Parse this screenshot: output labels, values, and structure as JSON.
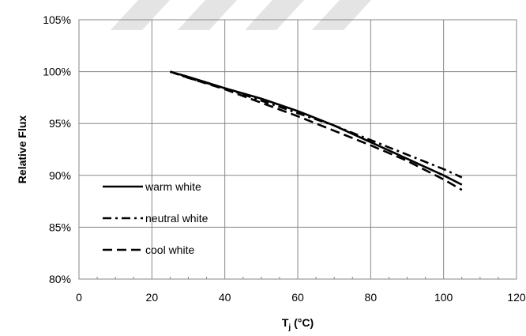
{
  "chart_data": {
    "type": "line",
    "xlabel_main": "T",
    "xlabel_sub": "j",
    "xlabel_unit": " (°C)",
    "ylabel": "Relative Flux",
    "xlim": [
      0,
      120
    ],
    "ylim": [
      80,
      105
    ],
    "x_ticks": [
      0,
      20,
      40,
      60,
      80,
      100,
      120
    ],
    "y_ticks": [
      80,
      85,
      90,
      95,
      100,
      105
    ],
    "x_tick_labels": [
      "0",
      "20",
      "40",
      "60",
      "80",
      "100",
      "120"
    ],
    "y_tick_labels": [
      "80%",
      "85%",
      "90%",
      "95%",
      "100%",
      "105%"
    ],
    "grid": true,
    "legend_position": "lower-left",
    "series": [
      {
        "name": "warm white",
        "line_style": "solid",
        "x": [
          25,
          30,
          40,
          50,
          60,
          65,
          70,
          80,
          90,
          100,
          105
        ],
        "y": [
          100,
          99.5,
          98.4,
          97.4,
          96.2,
          95.5,
          94.8,
          93.2,
          91.6,
          90.0,
          89.1
        ]
      },
      {
        "name": "neutral white",
        "line_style": "dash-dot",
        "x": [
          25,
          30,
          40,
          50,
          60,
          70,
          80,
          90,
          100,
          105
        ],
        "y": [
          100,
          99.4,
          98.4,
          97.2,
          96.0,
          94.8,
          93.4,
          92.0,
          90.6,
          89.8
        ]
      },
      {
        "name": "cool white",
        "line_style": "dashed",
        "x": [
          25,
          30,
          40,
          50,
          60,
          70,
          80,
          90,
          100,
          105
        ],
        "y": [
          100,
          99.4,
          98.3,
          97.0,
          95.7,
          94.3,
          92.9,
          91.4,
          89.6,
          88.6
        ]
      }
    ]
  },
  "colors": {
    "line": "#000000",
    "grid": "#878787",
    "background": "#ffffff",
    "watermark": "#e4e4e4"
  }
}
